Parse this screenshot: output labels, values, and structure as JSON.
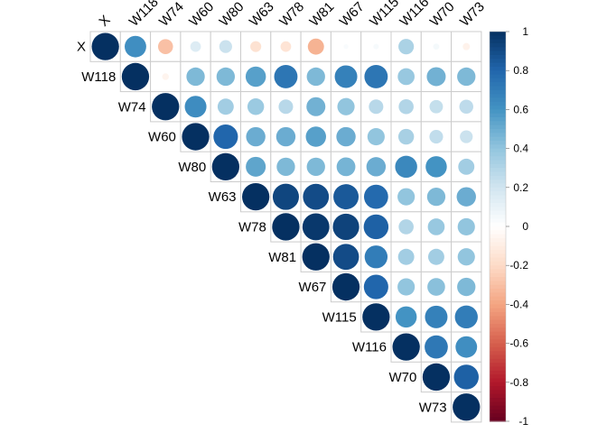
{
  "chart_data": {
    "type": "heatmap",
    "style": "corrplot-upper-circles",
    "variables": [
      "X",
      "W118",
      "W74",
      "W60",
      "W80",
      "W63",
      "W78",
      "W81",
      "W67",
      "W115",
      "W116",
      "W70",
      "W73"
    ],
    "matrix": [
      [
        1.0,
        0.62,
        -0.3,
        0.15,
        0.22,
        -0.16,
        -0.15,
        -0.35,
        0.03,
        0.04,
        0.32,
        0.05,
        -0.07
      ],
      [
        null,
        1.0,
        -0.06,
        0.45,
        0.45,
        0.55,
        0.73,
        0.45,
        0.68,
        0.73,
        0.38,
        0.48,
        0.45
      ],
      [
        null,
        null,
        1.0,
        0.63,
        0.35,
        0.37,
        0.28,
        0.48,
        0.4,
        0.28,
        0.3,
        0.24,
        0.26
      ],
      [
        null,
        null,
        null,
        1.0,
        0.8,
        0.5,
        0.5,
        0.55,
        0.5,
        0.4,
        0.33,
        0.25,
        0.22
      ],
      [
        null,
        null,
        null,
        null,
        1.0,
        0.53,
        0.45,
        0.45,
        0.47,
        0.5,
        0.65,
        0.6,
        0.35
      ],
      [
        null,
        null,
        null,
        null,
        null,
        1.0,
        0.92,
        0.9,
        0.85,
        0.78,
        0.4,
        0.45,
        0.5
      ],
      [
        null,
        null,
        null,
        null,
        null,
        null,
        1.0,
        0.97,
        0.93,
        0.82,
        0.3,
        0.38,
        0.4
      ],
      [
        null,
        null,
        null,
        null,
        null,
        null,
        null,
        1.0,
        0.9,
        0.7,
        0.35,
        0.35,
        0.4
      ],
      [
        null,
        null,
        null,
        null,
        null,
        null,
        null,
        null,
        1.0,
        0.8,
        0.4,
        0.42,
        0.45
      ],
      [
        null,
        null,
        null,
        null,
        null,
        null,
        null,
        null,
        null,
        1.0,
        0.6,
        0.68,
        0.7
      ],
      [
        null,
        null,
        null,
        null,
        null,
        null,
        null,
        null,
        null,
        null,
        1.0,
        0.72,
        0.62
      ],
      [
        null,
        null,
        null,
        null,
        null,
        null,
        null,
        null,
        null,
        null,
        null,
        1.0,
        0.82
      ],
      [
        null,
        null,
        null,
        null,
        null,
        null,
        null,
        null,
        null,
        null,
        null,
        null,
        1.0
      ]
    ],
    "colorbar": {
      "range": [
        -1,
        1
      ],
      "ticks": [
        "1",
        "0.8",
        "0.6",
        "0.4",
        "0.2",
        "0",
        "-0.2",
        "-0.4",
        "-0.6",
        "-0.8",
        "-1"
      ],
      "colors": [
        "#67001F",
        "#B2182B",
        "#D6604D",
        "#F4A582",
        "#FDDBC7",
        "#FFFFFF",
        "#D1E5F0",
        "#92C5DE",
        "#4393C3",
        "#2166AC",
        "#053061"
      ]
    },
    "grid": true,
    "legend": "right"
  }
}
